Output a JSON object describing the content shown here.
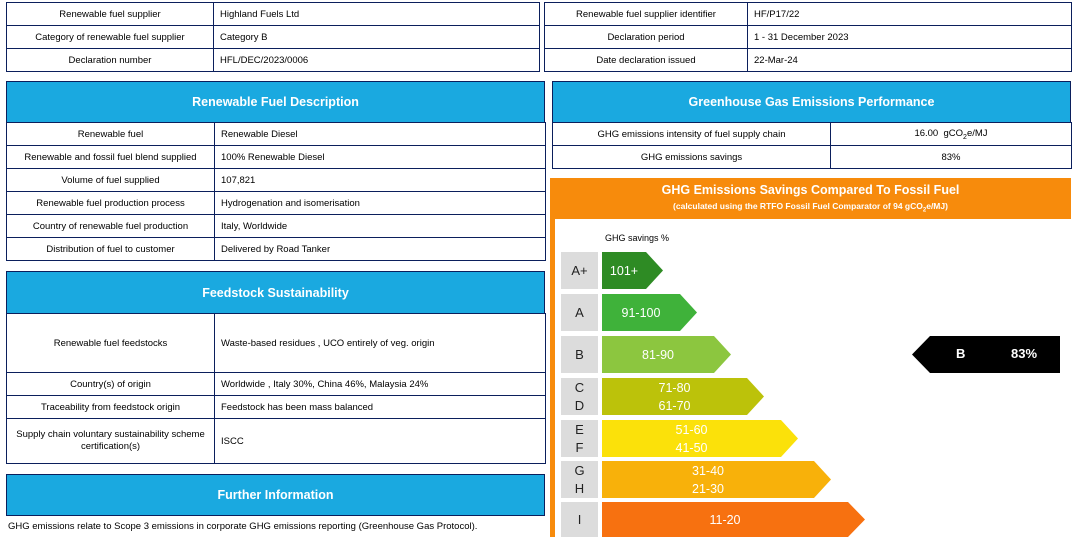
{
  "header": {
    "left_rows": [
      {
        "label": "Renewable fuel supplier",
        "value": "Highland Fuels Ltd"
      },
      {
        "label": "Category of renewable fuel supplier",
        "value": "Category B"
      },
      {
        "label": "Declaration number",
        "value": "HFL/DEC/2023/0006"
      }
    ],
    "right_rows": [
      {
        "label": "Renewable fuel supplier identifier",
        "value": "HF/P17/22"
      },
      {
        "label": "Declaration period",
        "value": "1 - 31 December 2023"
      },
      {
        "label": "Date declaration issued",
        "value": "22-Mar-24"
      }
    ]
  },
  "fuel_description": {
    "title": "Renewable Fuel Description",
    "rows": [
      {
        "label": "Renewable fuel",
        "value": "Renewable Diesel"
      },
      {
        "label": "Renewable and fossil fuel blend supplied",
        "value": "100% Renewable Diesel"
      },
      {
        "label": "Volume of fuel supplied",
        "value": "107,821"
      },
      {
        "label": "Renewable fuel production process",
        "value": "Hydrogenation and isomerisation"
      },
      {
        "label": "Country of renewable fuel production",
        "value": "Italy, Worldwide"
      },
      {
        "label": "Distribution of fuel to customer",
        "value": "Delivered by Road Tanker"
      }
    ]
  },
  "feedstock": {
    "title": "Feedstock Sustainability",
    "rows": [
      {
        "label": "Renewable fuel feedstocks",
        "value": "Waste-based residues , UCO entirely of veg. origin"
      },
      {
        "label": "Country(s) of origin",
        "value": "Worldwide , Italy 30%, China 46%, Malaysia 24%"
      },
      {
        "label": "Traceability from feedstock origin",
        "value": "Feedstock has been mass balanced"
      },
      {
        "label": "Supply chain voluntary sustainability scheme certification(s)",
        "value": "ISCC"
      }
    ]
  },
  "further": {
    "title": "Further Information",
    "text": "GHG emissions relate to Scope 3 emissions in corporate GHG emissions reporting (Greenhouse Gas Protocol)."
  },
  "ghg_performance": {
    "title": "Greenhouse Gas Emissions Performance",
    "intensity_label": "GHG emissions intensity of fuel supply chain",
    "intensity_value": "16.00",
    "intensity_unit_pre": "gCO",
    "intensity_unit_sub": "2",
    "intensity_unit_post": "e/MJ",
    "savings_label": "GHG emissions savings",
    "savings_value": "83%"
  },
  "ghg_chart": {
    "title": "GHG Emissions Savings Compared To Fossil Fuel",
    "subtitle_pre": "(calculated using the RTFO Fossil Fuel Comparator of 94 gCO",
    "subtitle_sub": "2",
    "subtitle_post": "e/MJ)",
    "axis_label": "GHG savings %",
    "bands": [
      {
        "grades": [
          "A+"
        ],
        "ranges": [
          "101+"
        ],
        "color": "#2e8b24",
        "text": "#ffffff"
      },
      {
        "grades": [
          "A"
        ],
        "ranges": [
          "91-100"
        ],
        "color": "#3fb23a",
        "text": "#ffffff"
      },
      {
        "grades": [
          "B"
        ],
        "ranges": [
          "81-90"
        ],
        "color": "#8cc63f",
        "text": "#ffffff"
      },
      {
        "grades": [
          "C",
          "D"
        ],
        "ranges": [
          "71-80",
          "61-70"
        ],
        "color": "#bcc20a",
        "text": "#ffffff"
      },
      {
        "grades": [
          "E",
          "F"
        ],
        "ranges": [
          "51-60",
          "41-50"
        ],
        "color": "#fbe10a",
        "text": "#ffffff"
      },
      {
        "grades": [
          "G",
          "H"
        ],
        "ranges": [
          "31-40",
          "21-30"
        ],
        "color": "#f8b10a",
        "text": "#ffffff"
      },
      {
        "grades": [
          "I"
        ],
        "ranges": [
          "11-20"
        ],
        "color": "#f77110",
        "text": "#ffffff"
      }
    ],
    "marker": {
      "grade": "B",
      "value": "83%"
    }
  }
}
